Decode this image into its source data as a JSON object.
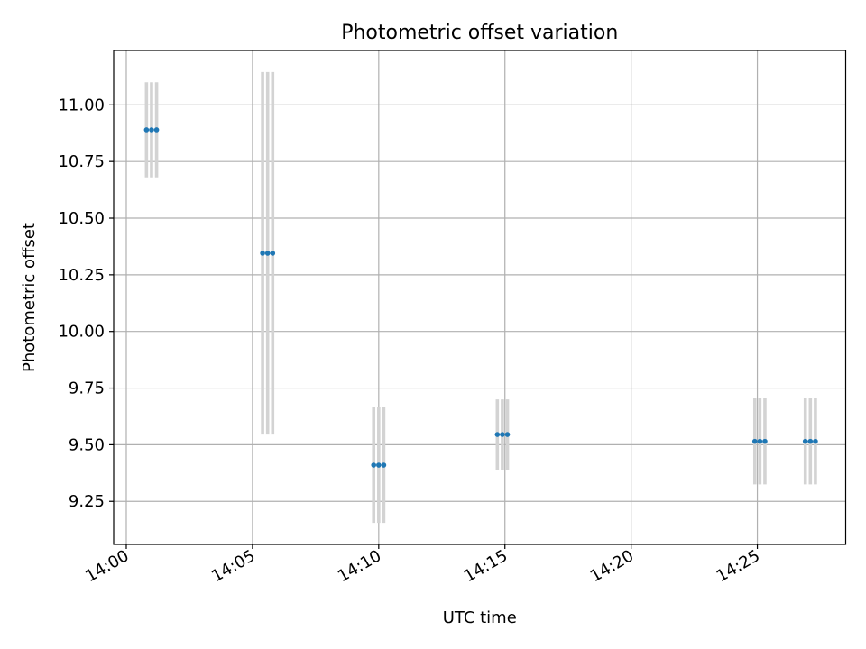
{
  "chart_data": {
    "type": "scatter",
    "title": "Photometric offset variation",
    "xlabel": "UTC time",
    "ylabel": "Photometric offset",
    "x_ticks": [
      "14:00",
      "14:05",
      "14:10",
      "14:15",
      "14:20",
      "14:25"
    ],
    "y_ticks": [
      "9.25",
      "9.50",
      "9.75",
      "10.00",
      "10.25",
      "10.50",
      "10.75",
      "11.00"
    ],
    "xlim": [
      "13:59:30",
      "14:28:30"
    ],
    "ylim": [
      9.06,
      11.24
    ],
    "grid": true,
    "errorbar_color": "#d3d3d3",
    "marker_color": "#1f77b4",
    "points": [
      {
        "time": "14:00:48",
        "y": 10.89,
        "yerr": 0.21
      },
      {
        "time": "14:01:00",
        "y": 10.89,
        "yerr": 0.21
      },
      {
        "time": "14:01:12",
        "y": 10.89,
        "yerr": 0.21
      },
      {
        "time": "14:05:24",
        "y": 10.345,
        "yerr": 0.8
      },
      {
        "time": "14:05:36",
        "y": 10.345,
        "yerr": 0.8
      },
      {
        "time": "14:05:48",
        "y": 10.345,
        "yerr": 0.8
      },
      {
        "time": "14:09:48",
        "y": 9.41,
        "yerr": 0.255
      },
      {
        "time": "14:10:00",
        "y": 9.41,
        "yerr": 0.255
      },
      {
        "time": "14:10:12",
        "y": 9.41,
        "yerr": 0.255
      },
      {
        "time": "14:14:42",
        "y": 9.545,
        "yerr": 0.155
      },
      {
        "time": "14:14:54",
        "y": 9.545,
        "yerr": 0.155
      },
      {
        "time": "14:15:06",
        "y": 9.545,
        "yerr": 0.155
      },
      {
        "time": "14:24:54",
        "y": 9.515,
        "yerr": 0.19
      },
      {
        "time": "14:25:06",
        "y": 9.515,
        "yerr": 0.19
      },
      {
        "time": "14:25:18",
        "y": 9.515,
        "yerr": 0.19
      },
      {
        "time": "14:26:54",
        "y": 9.515,
        "yerr": 0.19
      },
      {
        "time": "14:27:06",
        "y": 9.515,
        "yerr": 0.19
      },
      {
        "time": "14:27:18",
        "y": 9.515,
        "yerr": 0.19
      }
    ]
  }
}
